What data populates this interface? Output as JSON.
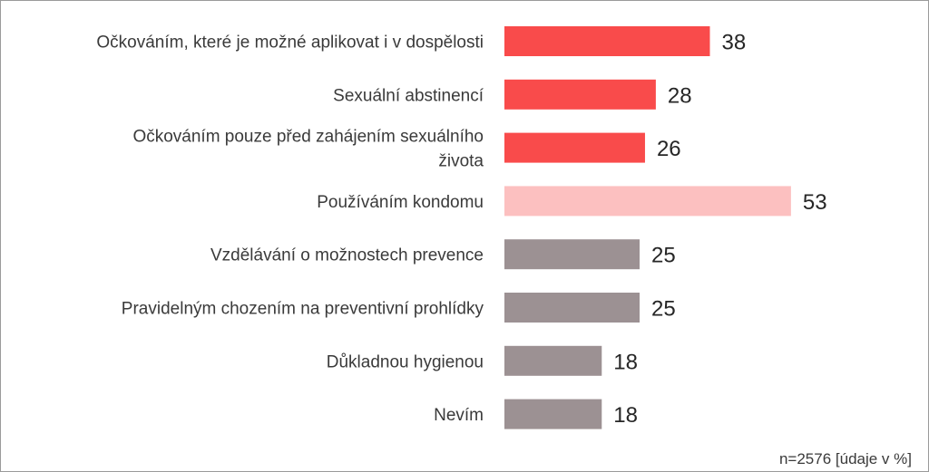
{
  "chart_data": {
    "type": "bar",
    "orientation": "horizontal",
    "categories": [
      "Očkováním, které je možné aplikovat i v dospělosti",
      "Sexuální abstinencí",
      "Očkováním pouze před zahájením sexuálního života",
      "Používáním kondomu",
      "Vzdělávání o možnostech prevence",
      "Pravidelným chozením na preventivní prohlídky",
      "Důkladnou hygienou",
      "Nevím"
    ],
    "category_lines": [
      [
        "Očkováním, které je možné aplikovat i v dospělosti"
      ],
      [
        "Sexuální abstinencí"
      ],
      [
        "Očkováním pouze před zahájením sexuálního",
        "života"
      ],
      [
        "Používáním kondomu"
      ],
      [
        "Vzdělávání o možnostech prevence"
      ],
      [
        "Pravidelným chozením na preventivní prohlídky"
      ],
      [
        "Důkladnou hygienou"
      ],
      [
        "Nevím"
      ]
    ],
    "values": [
      38,
      28,
      26,
      53,
      25,
      25,
      18,
      18
    ],
    "bar_colors": [
      "#f94b4b",
      "#f94b4b",
      "#f94b4b",
      "#fcc0c0",
      "#9c9193",
      "#9c9193",
      "#9c9193",
      "#9c9193"
    ],
    "data_labels": true,
    "grid": false,
    "legend": "none",
    "xlim": [
      0,
      53
    ]
  },
  "footnote": "n=2576 [údaje v %]"
}
